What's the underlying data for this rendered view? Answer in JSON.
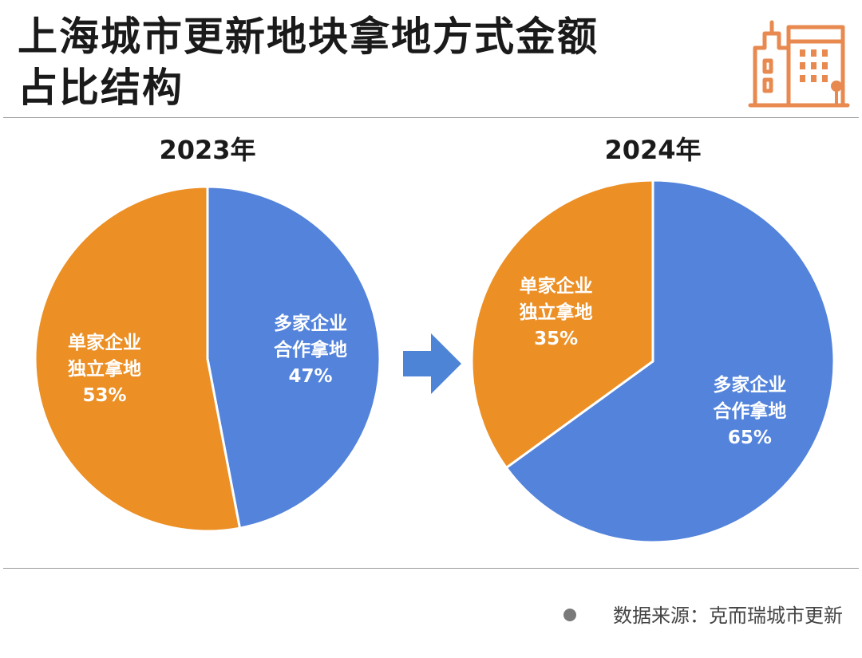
{
  "title_lines": [
    "上海城市更新地块拿地方式金额",
    "占比结构"
  ],
  "icons": {
    "logo": "city-buildings-icon",
    "arrow": "right-arrow-icon",
    "bullet": "bullet-dot-icon"
  },
  "colors": {
    "orange": "#EC8F25",
    "blue": "#5383DB",
    "logo": "#E8894F",
    "arrow": "#4E84D6"
  },
  "source": {
    "label": "数据来源：克而瑞城市更新"
  },
  "chart_data": [
    {
      "type": "pie",
      "title": "2023年",
      "slices": [
        {
          "label_lines": [
            "多家企业",
            "合作拿地"
          ],
          "value": 47,
          "value_label": "47%",
          "color": "#5383DB"
        },
        {
          "label_lines": [
            "单家企业",
            "独立拿地"
          ],
          "value": 53,
          "value_label": "53%",
          "color": "#EC8F25"
        }
      ]
    },
    {
      "type": "pie",
      "title": "2024年",
      "slices": [
        {
          "label_lines": [
            "多家企业",
            "合作拿地"
          ],
          "value": 65,
          "value_label": "65%",
          "color": "#5383DB"
        },
        {
          "label_lines": [
            "单家企业",
            "独立拿地"
          ],
          "value": 35,
          "value_label": "35%",
          "color": "#EC8F25"
        }
      ]
    }
  ]
}
